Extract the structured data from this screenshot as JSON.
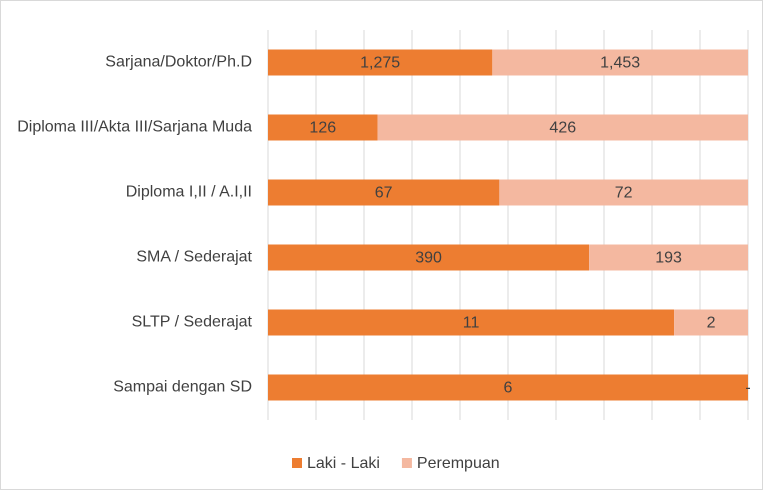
{
  "chart_data": {
    "type": "bar",
    "orientation": "horizontal",
    "stacking": "percent",
    "categories": [
      "Sarjana/Doktor/Ph.D",
      "Diploma III/Akta III/Sarjana Muda",
      "Diploma I,II / A.I,II",
      "SMA / Sederajat",
      "SLTP / Sederajat",
      "Sampai dengan SD"
    ],
    "series": [
      {
        "name": "Laki - Laki",
        "color": "#ed7d31",
        "values": [
          1275,
          126,
          67,
          390,
          11,
          6
        ],
        "value_labels": [
          "1,275",
          "126",
          "67",
          "390",
          "11",
          "6"
        ]
      },
      {
        "name": "Perempuan",
        "color": "#f4b8a0",
        "values": [
          1453,
          426,
          72,
          193,
          2,
          0
        ],
        "value_labels": [
          "1,453",
          "426",
          "72",
          "193",
          "2",
          "-"
        ]
      }
    ],
    "xlim": [
      0,
      100
    ],
    "xticks": [
      0,
      10,
      20,
      30,
      40,
      50,
      60,
      70,
      80,
      90,
      100
    ],
    "grid": true,
    "legend": "bottom"
  }
}
